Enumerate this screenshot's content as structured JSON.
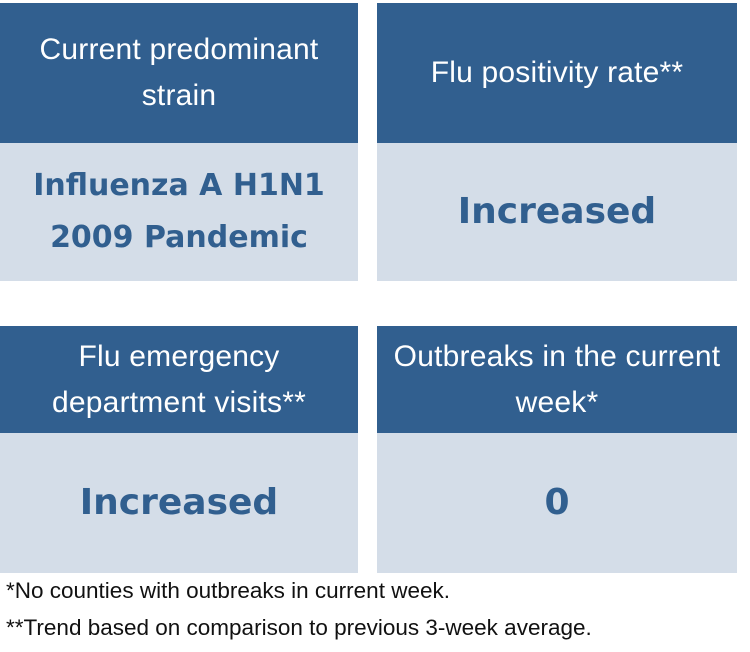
{
  "cards": [
    {
      "title": "Current predominant strain",
      "value": "Influenza A H1N1 2009 Pandemic"
    },
    {
      "title": "Flu positivity rate**",
      "value": "Increased"
    },
    {
      "title": "Flu emergency department visits**",
      "value": "Increased"
    },
    {
      "title": "Outbreaks in the current week*",
      "value": "0"
    }
  ],
  "footnotes": [
    "*No counties with outbreaks in current week.",
    "**Trend based on comparison to previous 3-week average."
  ],
  "colors": {
    "header_bg": "#315f8f",
    "body_bg": "#d4dde8",
    "value_text": "#315f8f",
    "header_text": "#ffffff"
  }
}
